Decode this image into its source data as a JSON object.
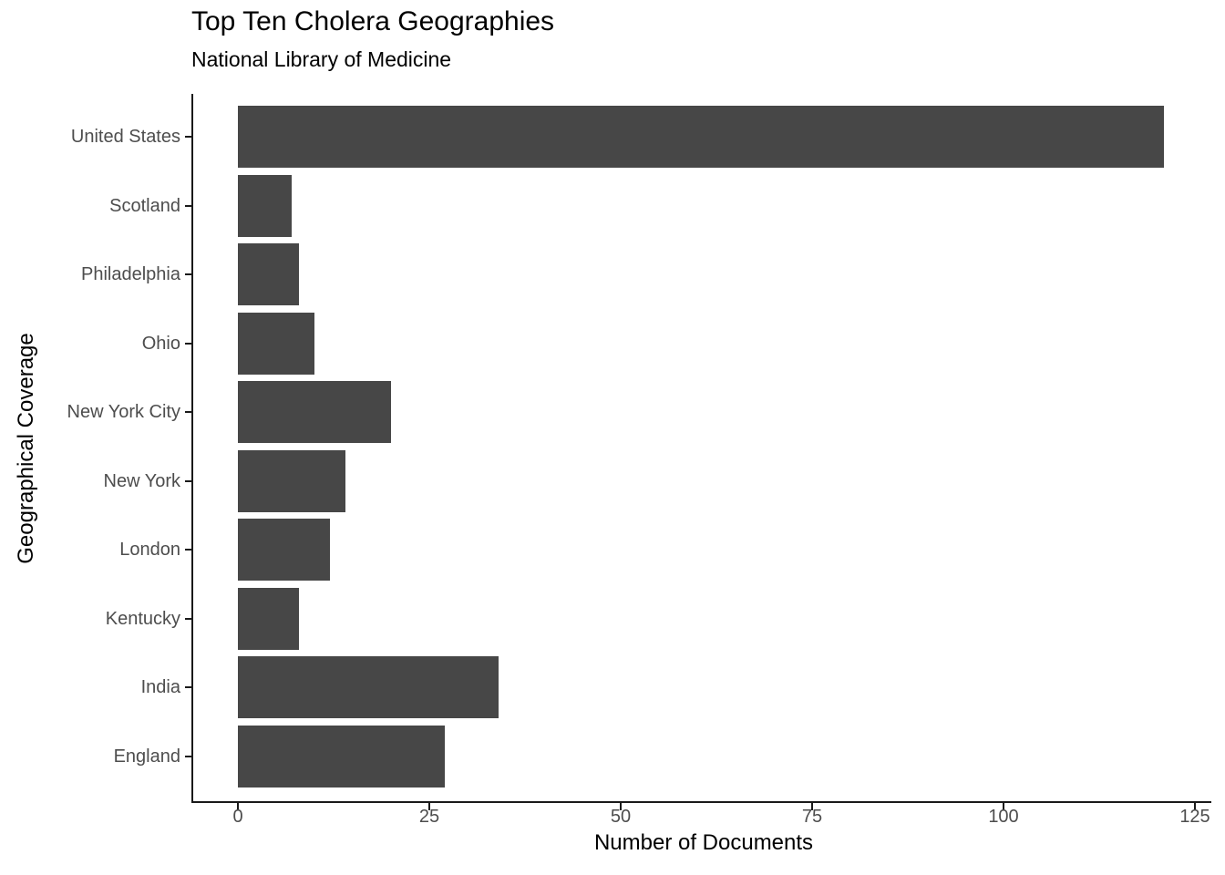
{
  "chart_data": {
    "type": "bar",
    "orientation": "horizontal",
    "title": "Top Ten Cholera Geographies",
    "subtitle": "National Library of Medicine",
    "xlabel": "Number of Documents",
    "ylabel": "Geographical Coverage",
    "categories": [
      "United States",
      "Scotland",
      "Philadelphia",
      "Ohio",
      "New York City",
      "New York",
      "London",
      "Kentucky",
      "India",
      "England"
    ],
    "values": [
      121,
      7,
      8,
      10,
      20,
      14,
      12,
      8,
      34,
      27
    ],
    "x_ticks": [
      0,
      25,
      50,
      75,
      100,
      125
    ],
    "xlim": [
      0,
      125
    ],
    "grid": false,
    "legend": false,
    "colors": {
      "bar": "#474747",
      "tick_label": "#4d4d4d",
      "axis_line": "#1a1a1a",
      "text": "#000000"
    }
  }
}
